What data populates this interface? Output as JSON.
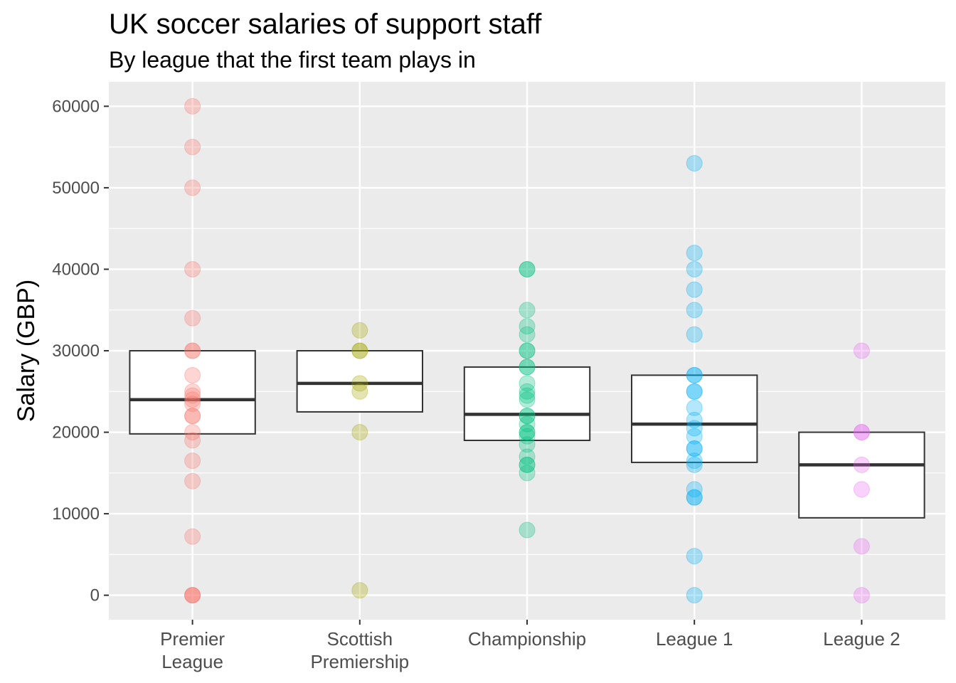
{
  "chart_data": {
    "type": "box",
    "title": "UK soccer salaries of support staff",
    "subtitle": "By league that the first team plays in",
    "xlabel": "",
    "ylabel": "Salary (GBP)",
    "ylim": [
      -3000,
      63000
    ],
    "yticks": [
      0,
      10000,
      20000,
      30000,
      40000,
      50000,
      60000
    ],
    "grid": true,
    "legend": "none",
    "categories": [
      "Premier\nLeague",
      "Scottish\nPremiership",
      "Championship",
      "League 1",
      "League 2"
    ],
    "series": [
      {
        "color": "#F8766D",
        "box": {
          "q1": 19800,
          "median": 24000,
          "q3": 30000
        },
        "points": [
          60000,
          55000,
          50000,
          40000,
          34000,
          30000,
          30000,
          27000,
          25000,
          24500,
          24000,
          23500,
          22000,
          22000,
          20000,
          19000,
          16500,
          14000,
          7200,
          0,
          0,
          0
        ]
      },
      {
        "color": "#A3A500",
        "box": {
          "q1": 22500,
          "median": 26000,
          "q3": 30000
        },
        "points": [
          32500,
          30000,
          30000,
          26000,
          25000,
          20000,
          600
        ]
      },
      {
        "color": "#00BF7D",
        "box": {
          "q1": 19000,
          "median": 22200,
          "q3": 28000
        },
        "points": [
          40000,
          40000,
          35000,
          33000,
          32000,
          30000,
          30000,
          28000,
          28000,
          26000,
          25000,
          24500,
          24000,
          22000,
          22000,
          21000,
          20000,
          20000,
          19500,
          18500,
          17000,
          16000,
          16000,
          15000,
          8000
        ]
      },
      {
        "color": "#00B0F6",
        "box": {
          "q1": 16300,
          "median": 21000,
          "q3": 27000
        },
        "points": [
          53000,
          42000,
          40000,
          37500,
          35000,
          32000,
          27000,
          27000,
          25000,
          25000,
          23000,
          21500,
          20500,
          19500,
          18000,
          18000,
          16500,
          16000,
          13000,
          12000,
          12000,
          4800,
          0
        ]
      },
      {
        "color": "#E76BF3",
        "box": {
          "q1": 9500,
          "median": 16000,
          "q3": 20000
        },
        "points": [
          30000,
          20000,
          20000,
          16000,
          13000,
          6000,
          0
        ]
      }
    ]
  }
}
